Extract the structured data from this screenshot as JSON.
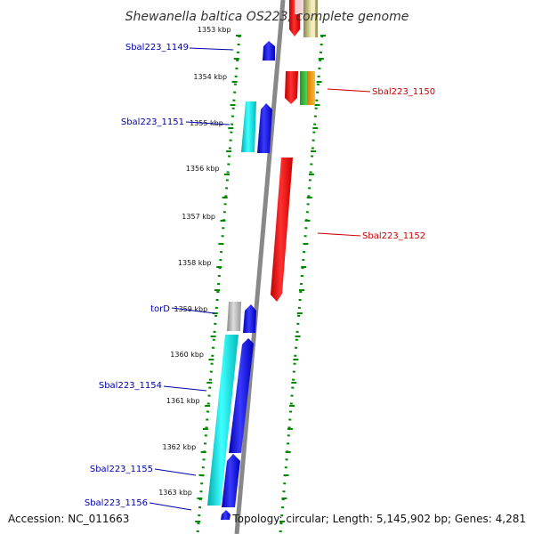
{
  "title": "Shewanella baltica OS223, complete genome",
  "accession": "Accession: NC_011663",
  "topology": "Topology: circular; Length: 5,145,902 bp; Genes: 4,281",
  "kbp_labels": [
    "1353 kbp",
    "1354 kbp",
    "1355 kbp",
    "1356 kbp",
    "1357 kbp",
    "1358 kbp",
    "1359 kbp",
    "1360 kbp",
    "1361 kbp",
    "1362 kbp",
    "1363 kbp"
  ],
  "gene_labels_left": [
    "Sbal223_1149",
    "Sbal223_1151",
    "torD",
    "Sbal223_1154",
    "Sbal223_1155",
    "Sbal223_1156"
  ],
  "gene_labels_right": [
    "Sbal223_1150",
    "Sbal223_1152"
  ],
  "colors": {
    "forward": "#0000ee",
    "reverse": "#ee0000",
    "cyan": "#00dddd",
    "gray": "#aaaaaa",
    "olive": "#b8b070",
    "green": "#44bb44",
    "orange": "#ff9900",
    "axis": "#888888",
    "dots": "#008800",
    "label_left": "#0000aa",
    "label_right": "#cc0000"
  }
}
